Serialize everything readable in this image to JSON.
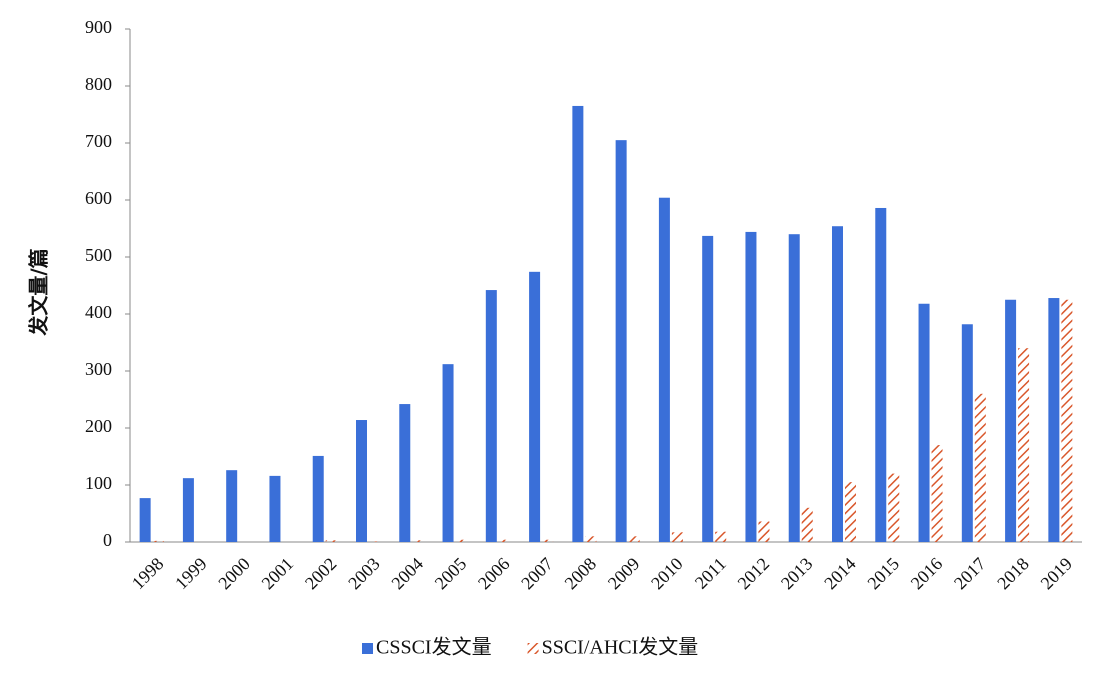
{
  "chart_data": {
    "type": "bar",
    "y_label": "发文量/篇",
    "categories": [
      "1998",
      "1999",
      "2000",
      "2001",
      "2002",
      "2003",
      "2004",
      "2005",
      "2006",
      "2007",
      "2008",
      "2009",
      "2010",
      "2011",
      "2012",
      "2013",
      "2014",
      "2015",
      "2016",
      "2017",
      "2018",
      "2019"
    ],
    "series": [
      {
        "name": "CSSCI发文量",
        "color": "#3a6fd8",
        "hatch": false,
        "values": [
          77,
          112,
          126,
          116,
          151,
          214,
          242,
          312,
          442,
          474,
          765,
          705,
          604,
          537,
          544,
          540,
          554,
          586,
          418,
          382,
          425,
          428
        ]
      },
      {
        "name": "SSCI/AHCI发文量",
        "color": "#d9572b",
        "hatch": true,
        "values": [
          2,
          0,
          0,
          0,
          3,
          1,
          3,
          4,
          4,
          4,
          10,
          10,
          17,
          18,
          36,
          60,
          105,
          120,
          170,
          260,
          340,
          425
        ]
      }
    ],
    "ylim": [
      0,
      900
    ],
    "yticks": [
      0,
      100,
      200,
      300,
      400,
      500,
      600,
      700,
      800,
      900
    ],
    "grid": false
  }
}
